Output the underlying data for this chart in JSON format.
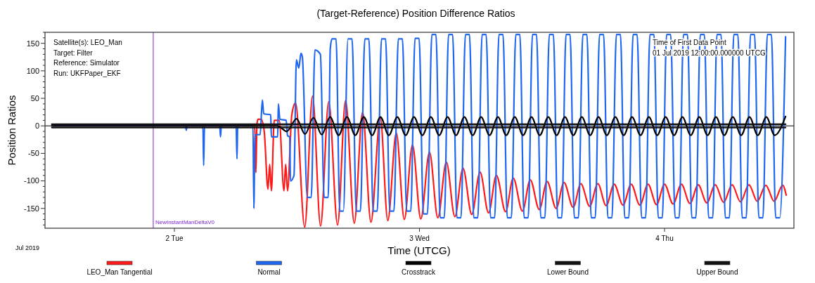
{
  "chart_data": {
    "type": "line",
    "title": "(Target-Reference)  Position Difference Ratios",
    "xlabel": "Time (UTCG)",
    "ylabel": "Position Ratios",
    "xlim": [
      "2019-07-01T11:20",
      "2019-07-04T12:40"
    ],
    "xticks": [
      {
        "value": "2019-07-02",
        "label": "2 Tue"
      },
      {
        "value": "2019-07-03",
        "label": "3 Wed"
      },
      {
        "value": "2019-07-04",
        "label": "4 Thu"
      }
    ],
    "ylim": [
      -186,
      170
    ],
    "yticks": [
      {
        "value": -180,
        "label": null
      },
      {
        "value": -170,
        "label": null
      },
      {
        "value": -160,
        "label": null
      },
      -150,
      {
        "value": -140,
        "label": null
      },
      {
        "value": -130,
        "label": null
      },
      {
        "value": -120,
        "label": null
      },
      {
        "value": -110,
        "label": null
      },
      -100,
      {
        "value": -90,
        "label": null
      },
      {
        "value": -80,
        "label": null
      },
      {
        "value": -70,
        "label": null
      },
      {
        "value": -60,
        "label": null
      },
      -50,
      {
        "value": -40,
        "label": null
      },
      {
        "value": -30,
        "label": null
      },
      {
        "value": -20,
        "label": null
      },
      {
        "value": -10,
        "label": null
      },
      0,
      {
        "value": 10,
        "label": null
      },
      {
        "value": 20,
        "label": null
      },
      {
        "value": 30,
        "label": null
      },
      {
        "value": 40,
        "label": null
      },
      50,
      {
        "value": 60,
        "label": null
      },
      {
        "value": 70,
        "label": null
      },
      {
        "value": 80,
        "label": null
      },
      {
        "value": 90,
        "label": null
      },
      100,
      {
        "value": 110,
        "label": null
      },
      {
        "value": 120,
        "label": null
      },
      {
        "value": 130,
        "label": null
      },
      {
        "value": 140,
        "label": null
      },
      150,
      {
        "value": 160,
        "label": null
      },
      {
        "value": 170,
        "label": null
      }
    ],
    "grid": false,
    "legend": "bottom",
    "marker": "none",
    "line_style": "solid",
    "annotations": [
      "Satellite(s): LEO_Man",
      "Target: Filter",
      "Reference: Simulator",
      "Run: UKFPaper_EKF",
      "Time of First Data Point",
      "01 Jul 2019 12:00:00.000000 UTCG",
      "Jul 2019"
    ],
    "ref_lines": [
      {
        "axis": "x",
        "value": "2019-07-01T21:56",
        "label": "NewInstantManDeltaV0",
        "color": "#7a1fd6"
      },
      {
        "axis": "y",
        "value": 0,
        "label": null,
        "color": "#000000"
      }
    ],
    "series": [
      {
        "name": "LEO_Man Tangential",
        "color": "#ff1a1a",
        "x": [
          "2019-07-01T12:00",
          "2019-07-02T07:52",
          "2019-07-02T07:59",
          "2019-07-02T08:05",
          "2019-07-02T08:10",
          "2019-07-02T08:30",
          "2019-07-02T08:48",
          "2019-07-02T09:10",
          "2019-07-02T09:20",
          "2019-07-02T09:30",
          "2019-07-02T09:47",
          "2019-07-02T10:16",
          "2019-07-02T10:44",
          "2019-07-02T10:54",
          "2019-07-02T11:05",
          "2019-07-02T11:30",
          "2019-07-02T11:52",
          "2019-07-02T12:46",
          "2019-07-02T13:32",
          "2019-07-02T14:19",
          "2019-07-02T15:07",
          "2019-07-02T15:59",
          "2019-07-02T16:46",
          "2019-07-02T17:37",
          "2019-07-02T18:26",
          "2019-07-02T19:15",
          "2019-07-02T20:10",
          "2019-07-02T20:54",
          "2019-07-02T21:44",
          "2019-07-02T22:31",
          "2019-07-02T23:19",
          "2019-07-03T00:08",
          "2019-07-03T00:59",
          "2019-07-03T01:48",
          "2019-07-03T02:38",
          "2019-07-03T03:28",
          "2019-07-03T04:16",
          "2019-07-03T05:07",
          "2019-07-03T05:56",
          "2019-07-03T06:46",
          "2019-07-03T07:32",
          "2019-07-03T08:26",
          "2019-07-03T09:11",
          "2019-07-03T10:05",
          "2019-07-03T10:51",
          "2019-07-03T11:44",
          "2019-07-03T12:30",
          "2019-07-03T13:23",
          "2019-07-03T14:09",
          "2019-07-03T15:03",
          "2019-07-03T15:48",
          "2019-07-03T16:40",
          "2019-07-03T17:28",
          "2019-07-03T18:17",
          "2019-07-03T19:04",
          "2019-07-03T19:56",
          "2019-07-03T20:44",
          "2019-07-03T21:35",
          "2019-07-03T22:23",
          "2019-07-03T23:13",
          "2019-07-04T00:00",
          "2019-07-04T00:50",
          "2019-07-04T01:39",
          "2019-07-04T02:29",
          "2019-07-04T03:18",
          "2019-07-04T04:08",
          "2019-07-04T04:58",
          "2019-07-04T05:47",
          "2019-07-04T06:37",
          "2019-07-04T07:26",
          "2019-07-04T08:16",
          "2019-07-04T09:05",
          "2019-07-04T09:55",
          "2019-07-04T10:44",
          "2019-07-04T11:34",
          "2019-07-04T11:55"
        ],
        "values": [
          0,
          0,
          -85,
          0,
          12,
          12,
          -10,
          -115,
          -70,
          -118,
          10,
          10,
          -118,
          -70,
          -118,
          20,
          42,
          -184,
          54,
          -182,
          44,
          -180,
          46,
          -177,
          25,
          -175,
          15,
          -172,
          -13,
          -170,
          -35,
          -169,
          -48,
          -167,
          -66,
          -165,
          -77,
          -161,
          -84,
          -158,
          -90,
          -156,
          -95,
          -155,
          -98,
          -152,
          -101,
          -150,
          -103,
          -148,
          -105,
          -146,
          -105,
          -145,
          -106,
          -144,
          -106,
          -144,
          -106,
          -143,
          -106,
          -142,
          -106,
          -141,
          -107,
          -140,
          -107,
          -139,
          -107,
          -138,
          -107,
          -137,
          -108,
          -137,
          -108,
          -126
        ]
      },
      {
        "name": "Normal",
        "color": "#1f66f0",
        "x": [
          "2019-07-01T12:00",
          "2019-07-02T01:06",
          "2019-07-02T01:10",
          "2019-07-02T01:15",
          "2019-07-02T02:48",
          "2019-07-02T02:52",
          "2019-07-02T02:57",
          "2019-07-02T04:27",
          "2019-07-02T04:31",
          "2019-07-02T04:36",
          "2019-07-02T06:03",
          "2019-07-02T06:08",
          "2019-07-02T06:12",
          "2019-07-02T07:42",
          "2019-07-02T07:47",
          "2019-07-02T07:54",
          "2019-07-02T08:24",
          "2019-07-02T08:37",
          "2019-07-02T08:45",
          "2019-07-02T09:26",
          "2019-07-02T09:30",
          "2019-07-02T10:07",
          "2019-07-02T10:11",
          "2019-07-02T10:20",
          "2019-07-02T10:57",
          "2019-07-02T11:05",
          "2019-07-02T11:18",
          "2019-07-02T11:22",
          "2019-07-02T11:43",
          "2019-07-02T11:57",
          "2019-07-02T12:11",
          "2019-07-02T12:24",
          "2019-07-02T12:32",
          "2019-07-02T13:01",
          "2019-07-02T13:24",
          "2019-07-02T13:46",
          "2019-07-02T14:18",
          "2019-07-02T14:40",
          "2019-07-02T15:04",
          "2019-07-02T15:16",
          "2019-07-02T15:26",
          "2019-07-02T15:50",
          "2019-07-02T16:12",
          "2019-07-02T16:33",
          "2019-07-02T17:00",
          "2019-07-02T17:24",
          "2019-07-02T17:49",
          "2019-07-02T18:13",
          "2019-07-02T18:39",
          "2019-07-02T19:03",
          "2019-07-02T19:28",
          "2019-07-02T19:52",
          "2019-07-02T20:17",
          "2019-07-02T20:41",
          "2019-07-02T21:06",
          "2019-07-02T21:30",
          "2019-07-02T21:56",
          "2019-07-02T22:20",
          "2019-07-02T22:45",
          "2019-07-02T23:09",
          "2019-07-02T23:34",
          "2019-07-02T23:58",
          "2019-07-03T00:23",
          "2019-07-03T00:47",
          "2019-07-03T01:13",
          "2019-07-03T01:37",
          "2019-07-03T02:02",
          "2019-07-03T02:26",
          "2019-07-03T02:51",
          "2019-07-03T03:15",
          "2019-07-03T03:40",
          "2019-07-03T04:04",
          "2019-07-03T04:30",
          "2019-07-03T04:54",
          "2019-07-03T05:19",
          "2019-07-03T05:43",
          "2019-07-03T06:08",
          "2019-07-03T06:32",
          "2019-07-03T06:58",
          "2019-07-03T07:22",
          "2019-07-03T07:47",
          "2019-07-03T08:11",
          "2019-07-03T08:36",
          "2019-07-03T09:00",
          "2019-07-03T09:26",
          "2019-07-03T09:50",
          "2019-07-03T10:15",
          "2019-07-03T10:39",
          "2019-07-03T11:04",
          "2019-07-03T11:28",
          "2019-07-03T11:53",
          "2019-07-03T12:17",
          "2019-07-03T12:43",
          "2019-07-03T13:07",
          "2019-07-03T13:32",
          "2019-07-03T13:56",
          "2019-07-03T14:21",
          "2019-07-03T14:45",
          "2019-07-03T15:10",
          "2019-07-03T15:34",
          "2019-07-03T16:00",
          "2019-07-03T16:24",
          "2019-07-03T16:49",
          "2019-07-03T17:13",
          "2019-07-03T17:38",
          "2019-07-03T18:02",
          "2019-07-03T18:27",
          "2019-07-03T18:51",
          "2019-07-03T19:17",
          "2019-07-03T19:41",
          "2019-07-03T20:06",
          "2019-07-03T20:30",
          "2019-07-03T20:55",
          "2019-07-03T21:19",
          "2019-07-03T21:45",
          "2019-07-03T22:09",
          "2019-07-03T22:34",
          "2019-07-03T22:58",
          "2019-07-03T23:23",
          "2019-07-03T23:47",
          "2019-07-04T00:12",
          "2019-07-04T00:36",
          "2019-07-04T01:02",
          "2019-07-04T01:26",
          "2019-07-04T01:51",
          "2019-07-04T02:15",
          "2019-07-04T02:40",
          "2019-07-04T03:04",
          "2019-07-04T03:30",
          "2019-07-04T03:54",
          "2019-07-04T04:19",
          "2019-07-04T04:43",
          "2019-07-04T05:08",
          "2019-07-04T05:32",
          "2019-07-04T05:57",
          "2019-07-04T06:21",
          "2019-07-04T06:47",
          "2019-07-04T07:11",
          "2019-07-04T07:36",
          "2019-07-04T08:00",
          "2019-07-04T08:25",
          "2019-07-04T08:49",
          "2019-07-04T09:14",
          "2019-07-04T09:38",
          "2019-07-04T10:04",
          "2019-07-04T10:28",
          "2019-07-04T10:53",
          "2019-07-04T11:17",
          "2019-07-04T11:51"
        ],
        "values": [
          0,
          0,
          -8,
          0,
          0,
          -72,
          0,
          0,
          -20,
          0,
          0,
          -60,
          0,
          0,
          -150,
          -16,
          -16,
          47,
          22,
          20,
          -20,
          -20,
          40,
          12,
          10,
          -18,
          -20,
          -100,
          -90,
          120,
          105,
          132,
          125,
          -130,
          -130,
          138,
          130,
          -130,
          -130,
          140,
          158,
          158,
          -155,
          -155,
          158,
          158,
          -155,
          -155,
          158,
          158,
          -155,
          -155,
          158,
          158,
          -155,
          -155,
          158,
          158,
          -155,
          -155,
          159,
          159,
          -160,
          -160,
          166,
          166,
          -167,
          -167,
          166,
          166,
          -167,
          -167,
          166,
          166,
          -167,
          -167,
          166,
          166,
          -167,
          -167,
          166,
          166,
          -167,
          -167,
          166,
          166,
          -167,
          -167,
          166,
          166,
          -167,
          -167,
          166,
          166,
          -167,
          -167,
          166,
          166,
          -167,
          -167,
          166,
          166,
          -167,
          -167,
          166,
          166,
          -167,
          -167,
          166,
          166,
          -167,
          -167,
          166,
          166,
          -167,
          -167,
          166,
          166,
          -167,
          -167,
          166,
          166,
          -167,
          -167,
          166,
          166,
          -167,
          -167,
          166,
          166,
          -167,
          -167,
          166,
          166,
          -167,
          -167,
          166,
          166,
          -167,
          -167,
          166,
          166,
          -167,
          -167,
          166,
          166,
          -167,
          -167,
          162
        ]
      },
      {
        "name": "Crosstrack",
        "color": "#000000",
        "x": [
          "2019-07-01T12:00",
          "2019-07-02T10:06",
          "2019-07-02T11:00",
          "2019-07-02T11:58",
          "2019-07-02T12:48",
          "2019-07-02T13:37",
          "2019-07-02T14:26",
          "2019-07-02T15:15",
          "2019-07-02T16:05",
          "2019-07-02T16:54",
          "2019-07-02T17:43",
          "2019-07-02T18:33",
          "2019-07-02T19:22",
          "2019-07-02T20:11",
          "2019-07-02T21:00",
          "2019-07-02T21:50",
          "2019-07-02T22:39",
          "2019-07-02T23:28",
          "2019-07-03T00:17",
          "2019-07-03T01:07",
          "2019-07-03T01:56",
          "2019-07-03T02:45",
          "2019-07-03T03:35",
          "2019-07-03T04:24",
          "2019-07-03T05:13",
          "2019-07-03T06:02",
          "2019-07-03T06:52",
          "2019-07-03T07:41",
          "2019-07-03T08:30",
          "2019-07-03T09:20",
          "2019-07-03T10:09",
          "2019-07-03T10:58",
          "2019-07-03T11:47",
          "2019-07-03T12:37",
          "2019-07-03T13:26",
          "2019-07-03T14:15",
          "2019-07-03T15:04",
          "2019-07-03T15:54",
          "2019-07-03T16:43",
          "2019-07-03T17:32",
          "2019-07-03T18:21",
          "2019-07-03T19:11",
          "2019-07-03T20:00",
          "2019-07-03T20:49",
          "2019-07-03T21:39",
          "2019-07-03T22:28",
          "2019-07-03T23:17",
          "2019-07-04T00:06",
          "2019-07-04T00:56",
          "2019-07-04T01:45",
          "2019-07-04T02:34",
          "2019-07-04T03:24",
          "2019-07-04T04:13",
          "2019-07-04T05:02",
          "2019-07-04T05:51",
          "2019-07-04T06:41",
          "2019-07-04T07:30",
          "2019-07-04T08:19",
          "2019-07-04T09:08",
          "2019-07-04T09:58",
          "2019-07-04T10:47",
          "2019-07-04T11:51"
        ],
        "values": [
          0,
          0,
          -10,
          13,
          -15,
          15,
          -16,
          16,
          -17,
          16,
          -17,
          16,
          -17,
          16,
          -17,
          16,
          -17,
          16,
          -17,
          16,
          -17,
          16,
          -17,
          16,
          -17,
          16,
          -17,
          16,
          -17,
          16,
          -17,
          16,
          -17,
          16,
          -17,
          16,
          -17,
          16,
          -17,
          16,
          -17,
          16,
          -17,
          16,
          -17,
          16,
          -17,
          16,
          -17,
          16,
          -17,
          16,
          -17,
          16,
          -17,
          16,
          -17,
          16,
          -17,
          16,
          -17,
          17
        ]
      },
      {
        "name": "Lower Bound",
        "color": "#111111",
        "x": [
          "2019-07-01T12:00",
          "2019-07-04T11:51"
        ],
        "values": [
          -3,
          -3
        ]
      },
      {
        "name": "Upper Bound",
        "color": "#111111",
        "x": [
          "2019-07-01T12:00",
          "2019-07-04T11:51"
        ],
        "values": [
          3,
          3
        ]
      }
    ]
  }
}
